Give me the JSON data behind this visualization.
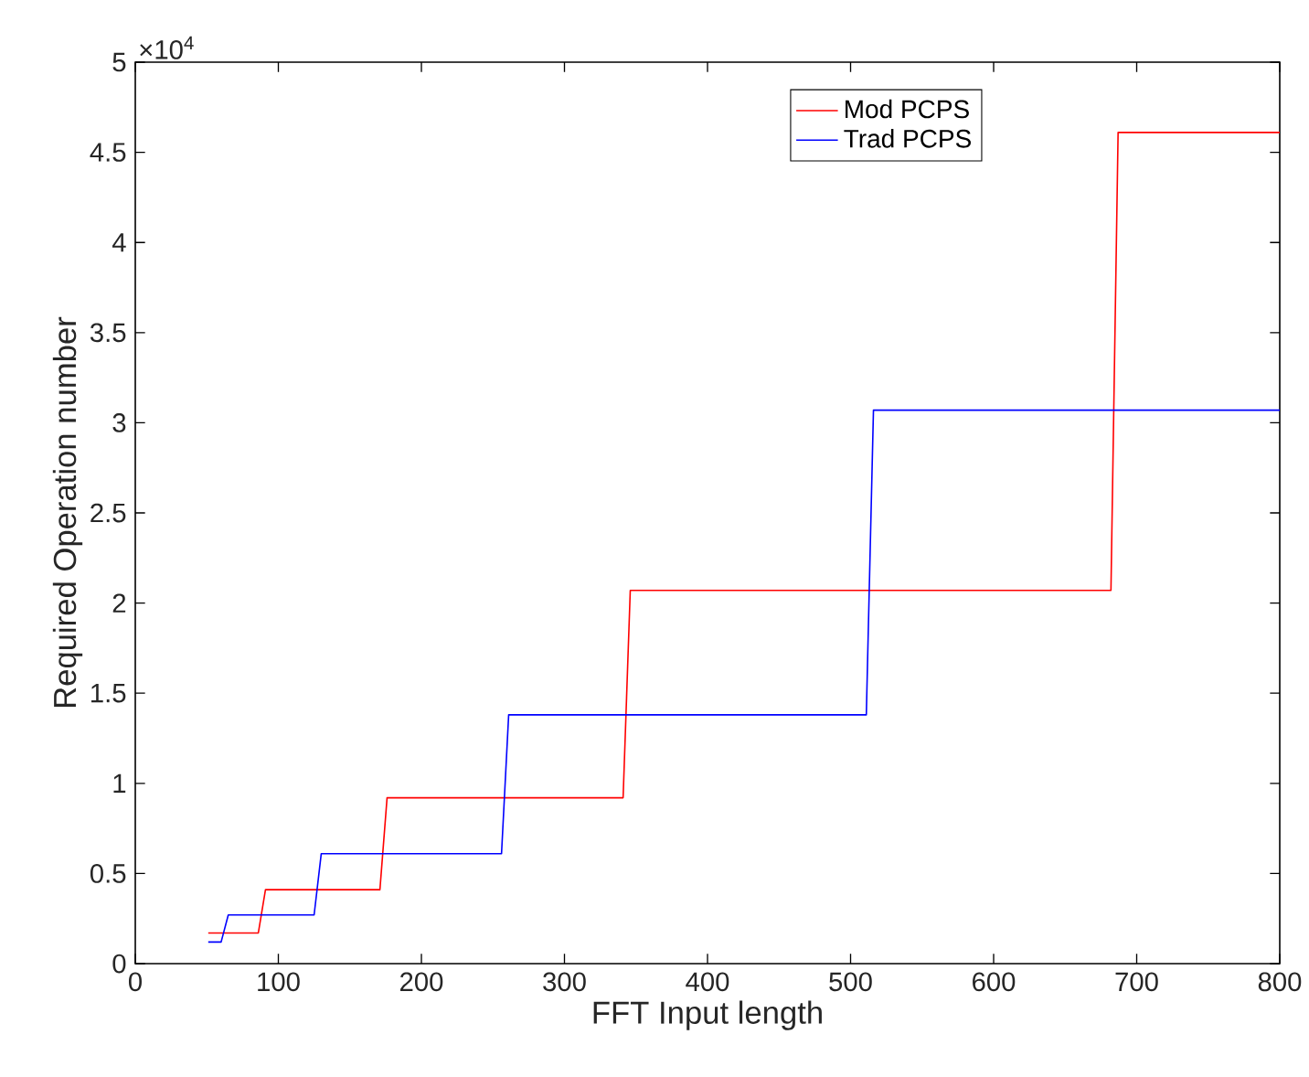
{
  "chart_data": {
    "type": "line",
    "xlabel": "FFT Input length",
    "ylabel": "Required Operation number",
    "annotations": [
      "×10$^{4}$"
    ],
    "series": [
      {
        "name": "Mod PCPS",
        "color": "#ff0000",
        "x": [
          51,
          86,
          91,
          171,
          176,
          341,
          346,
          682,
          687,
          800
        ],
        "values": [
          0.17,
          0.17,
          0.41,
          0.41,
          0.92,
          0.92,
          2.07,
          2.07,
          4.61,
          4.61
        ]
      },
      {
        "name": "Trad PCPS",
        "color": "#0000ff",
        "x": [
          51,
          60,
          65,
          125,
          130,
          256,
          261,
          511,
          516,
          800
        ],
        "values": [
          0.12,
          0.12,
          0.27,
          0.27,
          0.61,
          0.61,
          1.38,
          1.38,
          3.07,
          3.07
        ]
      }
    ],
    "xlim": [
      0,
      800
    ],
    "xticks": [
      0,
      100,
      200,
      300,
      400,
      500,
      600,
      700,
      800
    ],
    "ylim": [
      0,
      5
    ],
    "yticks": [
      0,
      0.5,
      1,
      1.5,
      2,
      2.5,
      3,
      3.5,
      4,
      4.5,
      5
    ],
    "legend": "top right",
    "grid": false,
    "marker": "none",
    "line_style": "solid"
  }
}
